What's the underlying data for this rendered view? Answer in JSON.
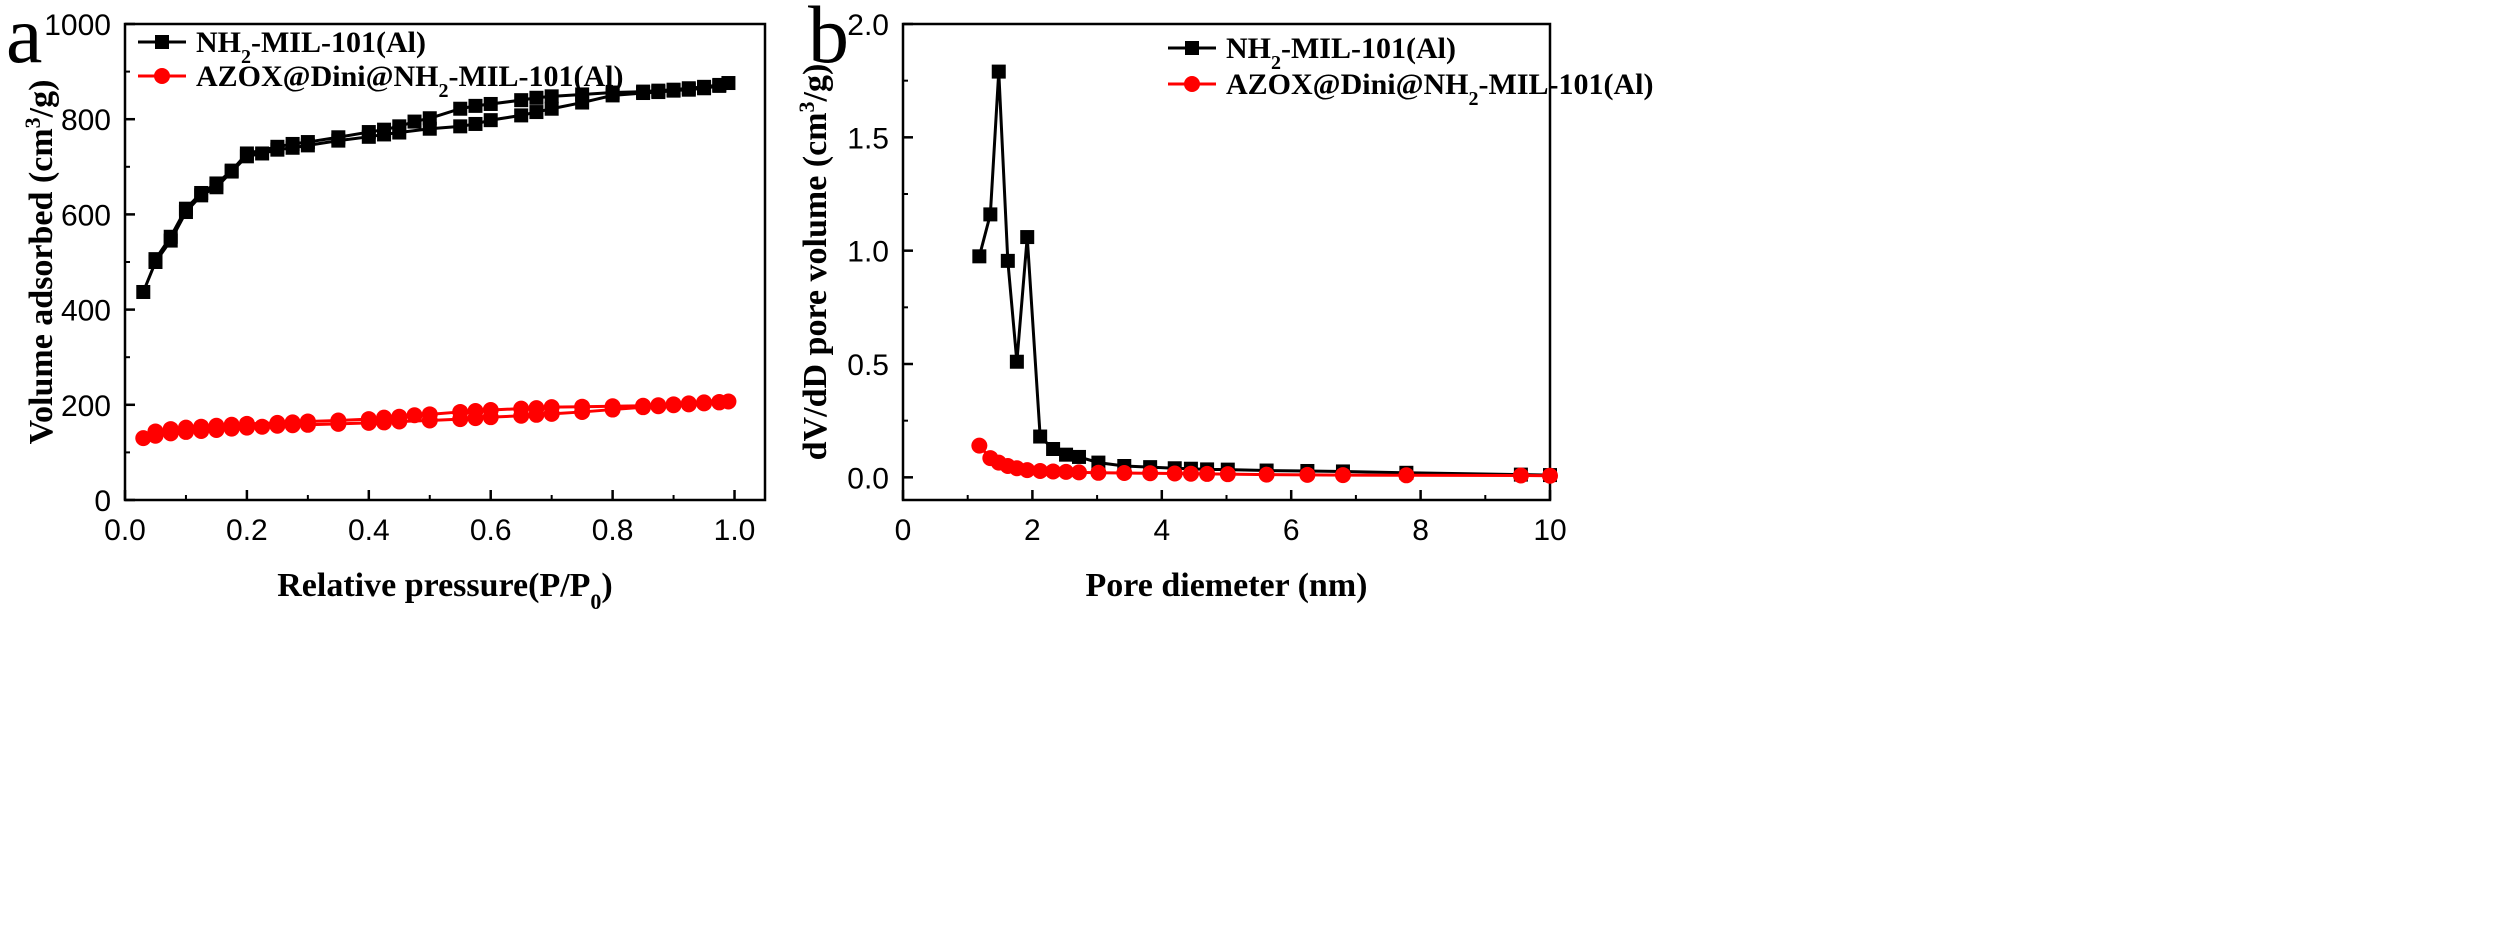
{
  "chart_data": [
    {
      "type": "line",
      "panel_label": "a",
      "xlabel_main": "Relative pressure(P/P",
      "xlabel_sub": "0",
      "xlabel_end": ")",
      "ylabel_main": "Volume adsorbed (cm",
      "ylabel_sup": "3",
      "ylabel_end": "/g)",
      "xlim": [
        0.0,
        1.05
      ],
      "ylim": [
        0,
        1000
      ],
      "xticks": [
        0.0,
        0.2,
        0.4,
        0.6,
        0.8,
        1.0
      ],
      "xtick_labels": [
        "0.0",
        "0.2",
        "0.4",
        "0.6",
        "0.8",
        "1.0"
      ],
      "yticks": [
        0,
        200,
        400,
        600,
        800,
        1000
      ],
      "ytick_labels": [
        "0",
        "200",
        "400",
        "600",
        "800",
        "1000"
      ],
      "legend_position": "top-left",
      "series": [
        {
          "name_pre": "NH",
          "name_sub": "2",
          "name_post": "-MIL-101(Al)",
          "color": "#000000",
          "marker": "square",
          "x": [
            0.03,
            0.05,
            0.075,
            0.1,
            0.125,
            0.15,
            0.175,
            0.2,
            0.225,
            0.25,
            0.275,
            0.3,
            0.35,
            0.4,
            0.425,
            0.45,
            0.5,
            0.55,
            0.575,
            0.6,
            0.65,
            0.675,
            0.7,
            0.75,
            0.8,
            0.85,
            0.875,
            0.9,
            0.925,
            0.95,
            0.975,
            0.99,
            0.975,
            0.95,
            0.925,
            0.9,
            0.875,
            0.85,
            0.8,
            0.75,
            0.7,
            0.675,
            0.65,
            0.6,
            0.575,
            0.55,
            0.5,
            0.475,
            0.45,
            0.425,
            0.4,
            0.35,
            0.3,
            0.275,
            0.25,
            0.2,
            0.175,
            0.15,
            0.125,
            0.1,
            0.075,
            0.05
          ],
          "y": [
            437,
            500,
            545,
            605,
            640,
            657,
            690,
            722,
            728,
            736,
            740,
            745,
            755,
            763,
            768,
            772,
            780,
            785,
            790,
            798,
            808,
            815,
            822,
            835,
            850,
            855,
            857,
            860,
            862,
            865,
            870,
            876,
            872,
            868,
            865,
            862,
            860,
            858,
            856,
            852,
            848,
            845,
            840,
            832,
            828,
            822,
            802,
            795,
            785,
            778,
            773,
            762,
            752,
            748,
            742,
            728,
            692,
            665,
            645,
            612,
            553,
            506
          ]
        },
        {
          "name_pre": "AZOX@Dini@NH",
          "name_sub": "2",
          "name_post": "-MIL-101(Al)",
          "color": "#ff0000",
          "marker": "circle",
          "x": [
            0.03,
            0.05,
            0.075,
            0.1,
            0.125,
            0.15,
            0.175,
            0.2,
            0.225,
            0.25,
            0.275,
            0.3,
            0.35,
            0.4,
            0.425,
            0.45,
            0.5,
            0.55,
            0.575,
            0.6,
            0.65,
            0.675,
            0.7,
            0.75,
            0.8,
            0.85,
            0.875,
            0.9,
            0.925,
            0.95,
            0.975,
            0.99,
            0.975,
            0.95,
            0.925,
            0.9,
            0.875,
            0.85,
            0.8,
            0.75,
            0.7,
            0.675,
            0.65,
            0.6,
            0.575,
            0.55,
            0.5,
            0.475,
            0.45,
            0.425,
            0.4,
            0.35,
            0.3,
            0.275,
            0.25,
            0.2,
            0.175,
            0.15,
            0.125,
            0.1,
            0.075,
            0.05
          ],
          "y": [
            130,
            135,
            140,
            143,
            145,
            147,
            150,
            152,
            154,
            156,
            157,
            158,
            160,
            162,
            163,
            165,
            167,
            170,
            172,
            174,
            177,
            179,
            181,
            185,
            190,
            195,
            197,
            199,
            201,
            203,
            205,
            207,
            206,
            205,
            203,
            201,
            199,
            198,
            197,
            196,
            195,
            193,
            192,
            189,
            187,
            185,
            180,
            178,
            175,
            173,
            170,
            167,
            165,
            163,
            162,
            160,
            158,
            156,
            154,
            152,
            149,
            144
          ]
        }
      ]
    },
    {
      "type": "line",
      "panel_label": "b",
      "xlabel": "Pore diemeter (nm)",
      "ylabel_main": "dV/dD pore volume (cm",
      "ylabel_sup": "3",
      "ylabel_end": "/g)",
      "xlim": [
        0,
        10
      ],
      "ylim": [
        -0.1,
        2.0
      ],
      "xticks": [
        0,
        2,
        4,
        6,
        8,
        10
      ],
      "xtick_labels": [
        "0",
        "2",
        "4",
        "6",
        "8",
        "10"
      ],
      "yticks": [
        0.0,
        0.5,
        1.0,
        1.5,
        2.0
      ],
      "ytick_labels": [
        "0.0",
        "0.5",
        "1.0",
        "1.5",
        "2.0"
      ],
      "legend_position": "top-right",
      "series": [
        {
          "name_pre": "NH",
          "name_sub": "2",
          "name_post": "-MIL-101(Al)",
          "color": "#000000",
          "marker": "square",
          "x": [
            1.18,
            1.35,
            1.48,
            1.62,
            1.76,
            1.92,
            2.12,
            2.32,
            2.52,
            2.72,
            3.02,
            3.42,
            3.82,
            4.2,
            4.45,
            4.7,
            5.02,
            5.62,
            6.25,
            6.8,
            7.78,
            9.55,
            10.0
          ],
          "y": [
            0.975,
            1.16,
            1.79,
            0.955,
            0.51,
            1.06,
            0.18,
            0.125,
            0.1,
            0.09,
            0.065,
            0.05,
            0.045,
            0.04,
            0.038,
            0.035,
            0.034,
            0.03,
            0.028,
            0.026,
            0.02,
            0.012,
            0.01
          ]
        },
        {
          "name_pre": "AZOX@Dini@NH",
          "name_sub": "2",
          "name_post": "-MIL-101(Al)",
          "color": "#ff0000",
          "marker": "circle",
          "x": [
            1.18,
            1.35,
            1.48,
            1.62,
            1.76,
            1.92,
            2.12,
            2.32,
            2.52,
            2.72,
            3.02,
            3.42,
            3.82,
            4.2,
            4.45,
            4.7,
            5.02,
            5.62,
            6.25,
            6.8,
            7.78,
            9.55,
            10.0
          ],
          "y": [
            0.14,
            0.085,
            0.065,
            0.05,
            0.04,
            0.032,
            0.028,
            0.026,
            0.024,
            0.022,
            0.02,
            0.019,
            0.018,
            0.017,
            0.016,
            0.015,
            0.014,
            0.012,
            0.011,
            0.01,
            0.009,
            0.008,
            0.007
          ]
        }
      ]
    }
  ]
}
